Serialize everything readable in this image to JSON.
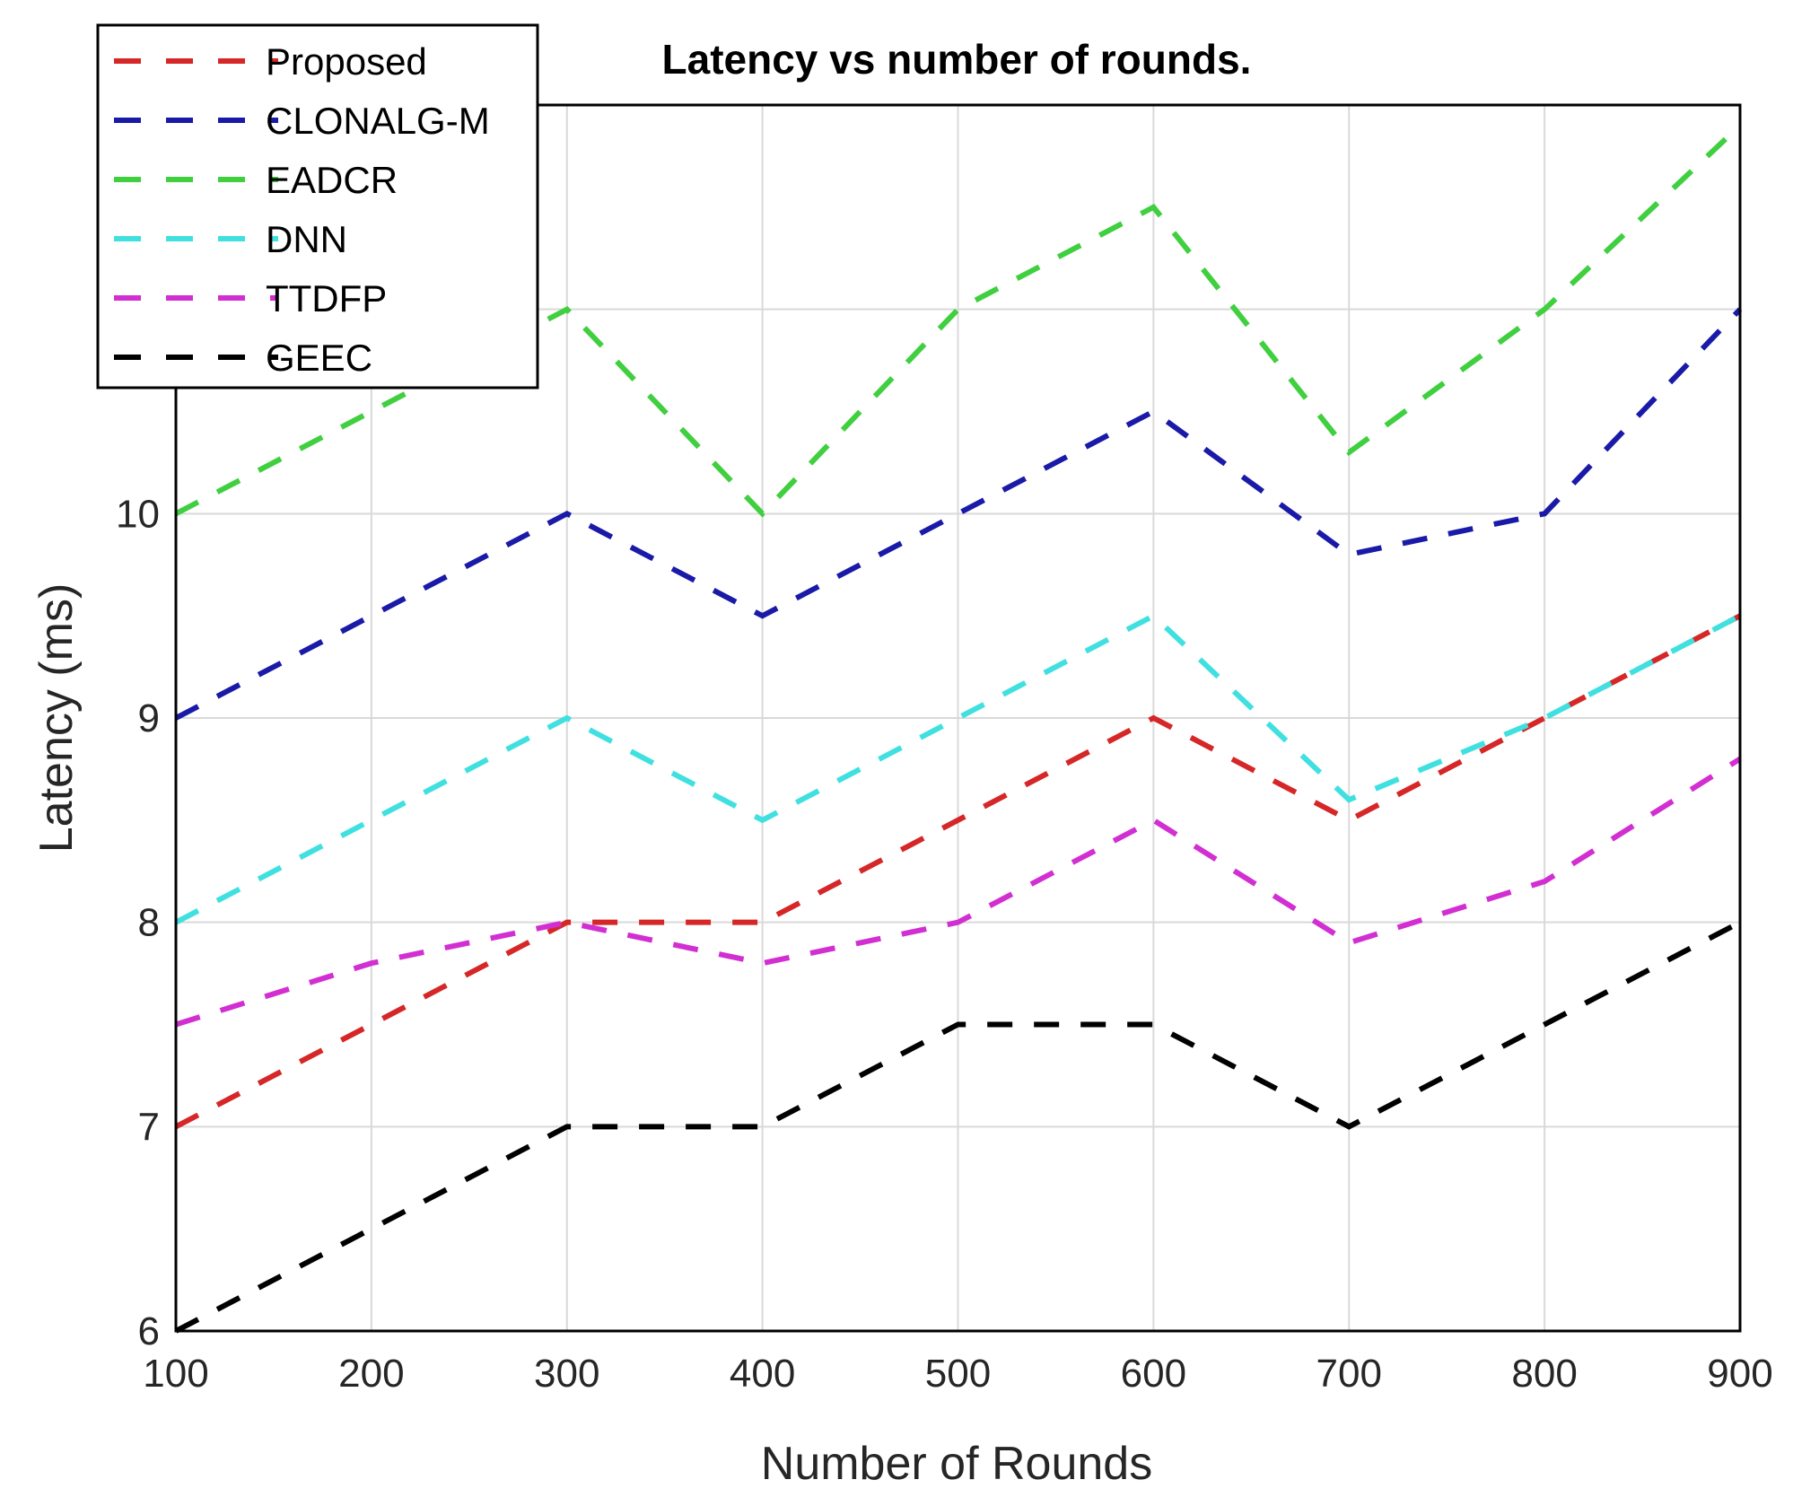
{
  "chart_data": {
    "type": "line",
    "title": "Latency vs number of rounds.",
    "xlabel": "Number of Rounds",
    "ylabel": "Latency (ms)",
    "x": [
      100,
      200,
      300,
      400,
      500,
      600,
      700,
      800,
      900
    ],
    "xlim": [
      100,
      900
    ],
    "ylim": [
      6,
      12
    ],
    "xticks": [
      "100",
      "200",
      "300",
      "400",
      "500",
      "600",
      "700",
      "800",
      "900"
    ],
    "yticks": [
      "6",
      "7",
      "8",
      "9",
      "10"
    ],
    "grid": true,
    "line_style": "dashed",
    "legend_position": "top-left",
    "series": [
      {
        "name": "Proposed",
        "color": "#d62728",
        "values": [
          7,
          7.5,
          8,
          8,
          8.5,
          9,
          8.5,
          9,
          9.5
        ]
      },
      {
        "name": "CLONALG-M",
        "color": "#1a1aa8",
        "values": [
          9,
          9.5,
          10,
          9.5,
          10,
          10.5,
          9.8,
          10,
          11
        ]
      },
      {
        "name": "EADCR",
        "color": "#3fcf3f",
        "values": [
          10,
          10.5,
          11,
          10,
          11,
          11.5,
          10.3,
          11,
          11.9
        ]
      },
      {
        "name": "DNN",
        "color": "#40e0e0",
        "values": [
          8,
          8.5,
          9,
          8.5,
          9,
          9.5,
          8.6,
          9,
          9.5
        ]
      },
      {
        "name": "TTDFP",
        "color": "#d22fd2",
        "values": [
          7.5,
          7.8,
          8,
          7.8,
          8,
          8.5,
          7.9,
          8.2,
          8.8
        ]
      },
      {
        "name": "GEEC",
        "color": "#000000",
        "values": [
          6,
          6.5,
          7,
          7,
          7.5,
          7.5,
          7,
          7.5,
          8
        ]
      }
    ]
  }
}
